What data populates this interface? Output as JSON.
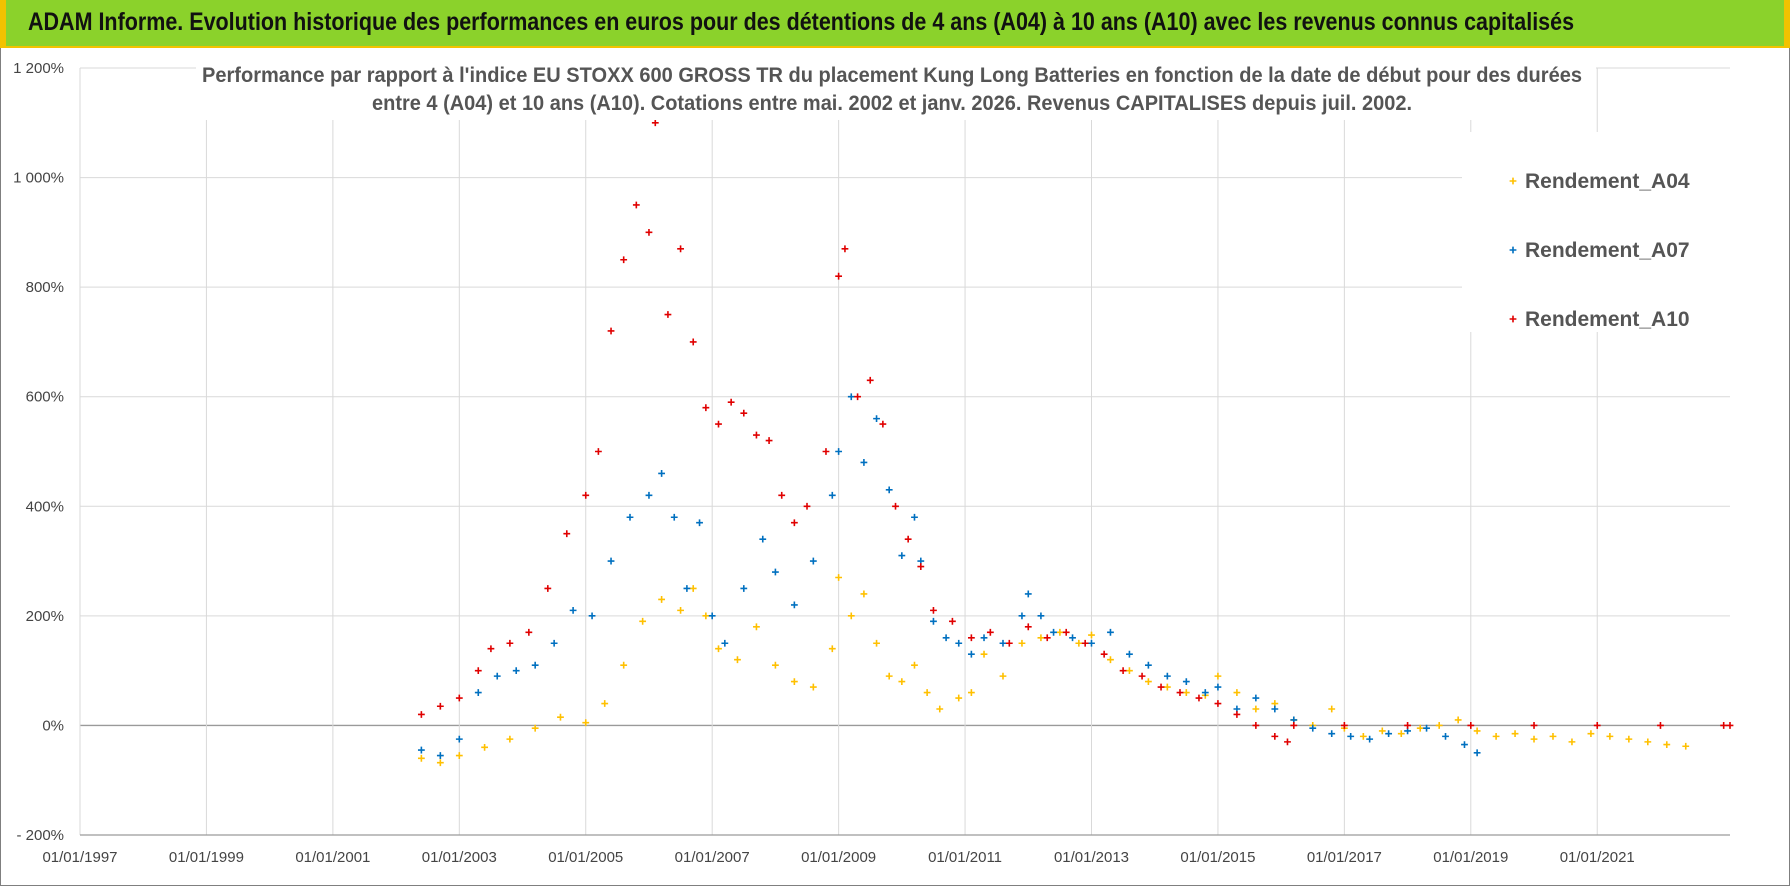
{
  "header": {
    "banner_title": "ADAM Informe. Evolution historique des performances en euros pour des détentions de 4 ans (A04) à 10 ans (A10) avec les revenus connus capitalisés"
  },
  "colors": {
    "banner_bg": "#8bd22b",
    "banner_accent": "#f2c200",
    "A04": "#ffc000",
    "A07": "#0070c0",
    "A10": "#e00000"
  },
  "chart_data": {
    "type": "scatter",
    "title_line1": "Performance par rapport à l'indice EU STOXX 600 GROSS TR  du placement Kung Long Batteries  en fonction de la date de début pour des durées",
    "title_line2": "entre 4 (A04) et 10 ans (A10). Cotations entre mai. 2002 et janv. 2026. Revenus CAPITALISES depuis juil. 2002.",
    "xlabel": "",
    "ylabel": "",
    "xlim": [
      1997.0,
      2023.1
    ],
    "ylim": [
      -200,
      1200
    ],
    "y_ticks": [
      -200,
      0,
      200,
      400,
      600,
      800,
      1000,
      1200
    ],
    "y_tick_labels": [
      "- 200%",
      "0%",
      "200%",
      "400%",
      "600%",
      "800%",
      "1 000%",
      "1 200%"
    ],
    "x_ticks": [
      1997,
      1999,
      2001,
      2003,
      2005,
      2007,
      2009,
      2011,
      2013,
      2015,
      2017,
      2019,
      2021
    ],
    "x_tick_labels": [
      "01/01/1997",
      "01/01/1999",
      "01/01/2001",
      "01/01/2003",
      "01/01/2005",
      "01/01/2007",
      "01/01/2009",
      "01/01/2011",
      "01/01/2013",
      "01/01/2015",
      "01/01/2017",
      "01/01/2019",
      "01/01/2021"
    ],
    "legend_position": "top-right",
    "grid": true,
    "series": [
      {
        "name": "Rendement_A04",
        "color": "#ffc000",
        "marker": "+",
        "points": [
          [
            2002.4,
            -60
          ],
          [
            2002.7,
            -68
          ],
          [
            2003.0,
            -55
          ],
          [
            2003.4,
            -40
          ],
          [
            2003.8,
            -25
          ],
          [
            2004.2,
            -5
          ],
          [
            2004.6,
            15
          ],
          [
            2005.0,
            5
          ],
          [
            2005.3,
            40
          ],
          [
            2005.6,
            110
          ],
          [
            2005.9,
            190
          ],
          [
            2006.2,
            230
          ],
          [
            2006.5,
            210
          ],
          [
            2006.7,
            250
          ],
          [
            2006.9,
            200
          ],
          [
            2007.1,
            140
          ],
          [
            2007.4,
            120
          ],
          [
            2007.7,
            180
          ],
          [
            2008.0,
            110
          ],
          [
            2008.3,
            80
          ],
          [
            2008.6,
            70
          ],
          [
            2008.9,
            140
          ],
          [
            2009.0,
            270
          ],
          [
            2009.2,
            200
          ],
          [
            2009.4,
            240
          ],
          [
            2009.6,
            150
          ],
          [
            2009.8,
            90
          ],
          [
            2010.0,
            80
          ],
          [
            2010.2,
            110
          ],
          [
            2010.4,
            60
          ],
          [
            2010.6,
            30
          ],
          [
            2010.9,
            50
          ],
          [
            2011.1,
            60
          ],
          [
            2011.3,
            130
          ],
          [
            2011.6,
            90
          ],
          [
            2011.9,
            150
          ],
          [
            2012.2,
            160
          ],
          [
            2012.5,
            170
          ],
          [
            2012.8,
            150
          ],
          [
            2013.0,
            165
          ],
          [
            2013.3,
            120
          ],
          [
            2013.6,
            100
          ],
          [
            2013.9,
            80
          ],
          [
            2014.2,
            70
          ],
          [
            2014.5,
            60
          ],
          [
            2014.8,
            55
          ],
          [
            2015.0,
            90
          ],
          [
            2015.3,
            60
          ],
          [
            2015.6,
            30
          ],
          [
            2015.9,
            40
          ],
          [
            2016.2,
            10
          ],
          [
            2016.5,
            0
          ],
          [
            2016.8,
            30
          ],
          [
            2017.0,
            -5
          ],
          [
            2017.3,
            -20
          ],
          [
            2017.6,
            -10
          ],
          [
            2017.9,
            -15
          ],
          [
            2018.2,
            -5
          ],
          [
            2018.5,
            0
          ],
          [
            2018.8,
            10
          ],
          [
            2019.1,
            -10
          ],
          [
            2019.4,
            -20
          ],
          [
            2019.7,
            -15
          ],
          [
            2020.0,
            -25
          ],
          [
            2020.3,
            -20
          ],
          [
            2020.6,
            -30
          ],
          [
            2020.9,
            -15
          ],
          [
            2021.2,
            -20
          ],
          [
            2021.5,
            -25
          ],
          [
            2021.8,
            -30
          ],
          [
            2022.1,
            -35
          ],
          [
            2022.4,
            -38
          ]
        ]
      },
      {
        "name": "Rendement_A07",
        "color": "#0070c0",
        "marker": "+",
        "points": [
          [
            2002.4,
            -45
          ],
          [
            2002.7,
            -55
          ],
          [
            2003.0,
            -25
          ],
          [
            2003.3,
            60
          ],
          [
            2003.6,
            90
          ],
          [
            2003.9,
            100
          ],
          [
            2004.2,
            110
          ],
          [
            2004.5,
            150
          ],
          [
            2004.8,
            210
          ],
          [
            2005.1,
            200
          ],
          [
            2005.4,
            300
          ],
          [
            2005.7,
            380
          ],
          [
            2006.0,
            420
          ],
          [
            2006.2,
            460
          ],
          [
            2006.4,
            380
          ],
          [
            2006.6,
            250
          ],
          [
            2006.8,
            370
          ],
          [
            2007.0,
            200
          ],
          [
            2007.2,
            150
          ],
          [
            2007.5,
            250
          ],
          [
            2007.8,
            340
          ],
          [
            2008.0,
            280
          ],
          [
            2008.3,
            220
          ],
          [
            2008.6,
            300
          ],
          [
            2008.9,
            420
          ],
          [
            2009.0,
            500
          ],
          [
            2009.2,
            600
          ],
          [
            2009.4,
            480
          ],
          [
            2009.6,
            560
          ],
          [
            2009.8,
            430
          ],
          [
            2010.0,
            310
          ],
          [
            2010.2,
            380
          ],
          [
            2010.3,
            300
          ],
          [
            2010.5,
            190
          ],
          [
            2010.7,
            160
          ],
          [
            2010.9,
            150
          ],
          [
            2011.1,
            130
          ],
          [
            2011.3,
            160
          ],
          [
            2011.6,
            150
          ],
          [
            2011.9,
            200
          ],
          [
            2012.0,
            240
          ],
          [
            2012.2,
            200
          ],
          [
            2012.4,
            170
          ],
          [
            2012.7,
            160
          ],
          [
            2013.0,
            150
          ],
          [
            2013.3,
            170
          ],
          [
            2013.6,
            130
          ],
          [
            2013.9,
            110
          ],
          [
            2014.2,
            90
          ],
          [
            2014.5,
            80
          ],
          [
            2014.8,
            60
          ],
          [
            2015.0,
            70
          ],
          [
            2015.3,
            30
          ],
          [
            2015.6,
            50
          ],
          [
            2015.9,
            30
          ],
          [
            2016.2,
            10
          ],
          [
            2016.5,
            -5
          ],
          [
            2016.8,
            -15
          ],
          [
            2017.1,
            -20
          ],
          [
            2017.4,
            -25
          ],
          [
            2017.7,
            -15
          ],
          [
            2018.0,
            -10
          ],
          [
            2018.3,
            -5
          ],
          [
            2018.6,
            -20
          ],
          [
            2018.9,
            -35
          ],
          [
            2019.1,
            -50
          ]
        ]
      },
      {
        "name": "Rendement_A10",
        "color": "#e00000",
        "marker": "+",
        "points": [
          [
            2002.4,
            20
          ],
          [
            2002.7,
            35
          ],
          [
            2003.0,
            50
          ],
          [
            2003.3,
            100
          ],
          [
            2003.5,
            140
          ],
          [
            2003.8,
            150
          ],
          [
            2004.1,
            170
          ],
          [
            2004.4,
            250
          ],
          [
            2004.7,
            350
          ],
          [
            2005.0,
            420
          ],
          [
            2005.2,
            500
          ],
          [
            2005.4,
            720
          ],
          [
            2005.6,
            850
          ],
          [
            2005.8,
            950
          ],
          [
            2006.0,
            900
          ],
          [
            2006.1,
            1100
          ],
          [
            2006.3,
            750
          ],
          [
            2006.5,
            870
          ],
          [
            2006.7,
            700
          ],
          [
            2006.9,
            580
          ],
          [
            2007.1,
            550
          ],
          [
            2007.3,
            590
          ],
          [
            2007.5,
            570
          ],
          [
            2007.7,
            530
          ],
          [
            2007.9,
            520
          ],
          [
            2008.1,
            420
          ],
          [
            2008.3,
            370
          ],
          [
            2008.5,
            400
          ],
          [
            2008.8,
            500
          ],
          [
            2009.0,
            820
          ],
          [
            2009.1,
            870
          ],
          [
            2009.3,
            600
          ],
          [
            2009.5,
            630
          ],
          [
            2009.7,
            550
          ],
          [
            2009.9,
            400
          ],
          [
            2010.1,
            340
          ],
          [
            2010.3,
            290
          ],
          [
            2010.5,
            210
          ],
          [
            2010.8,
            190
          ],
          [
            2011.1,
            160
          ],
          [
            2011.4,
            170
          ],
          [
            2011.7,
            150
          ],
          [
            2012.0,
            180
          ],
          [
            2012.3,
            160
          ],
          [
            2012.6,
            170
          ],
          [
            2012.9,
            150
          ],
          [
            2013.2,
            130
          ],
          [
            2013.5,
            100
          ],
          [
            2013.8,
            90
          ],
          [
            2014.1,
            70
          ],
          [
            2014.4,
            60
          ],
          [
            2014.7,
            50
          ],
          [
            2015.0,
            40
          ],
          [
            2015.3,
            20
          ],
          [
            2015.6,
            0
          ],
          [
            2015.9,
            -20
          ],
          [
            2016.1,
            -30
          ],
          [
            2016.2,
            0
          ],
          [
            2017.0,
            0
          ],
          [
            2018.0,
            0
          ],
          [
            2019.0,
            0
          ],
          [
            2020.0,
            0
          ],
          [
            2021.0,
            0
          ],
          [
            2022.0,
            0
          ],
          [
            2023.0,
            0
          ],
          [
            2023.1,
            0
          ]
        ]
      }
    ]
  }
}
